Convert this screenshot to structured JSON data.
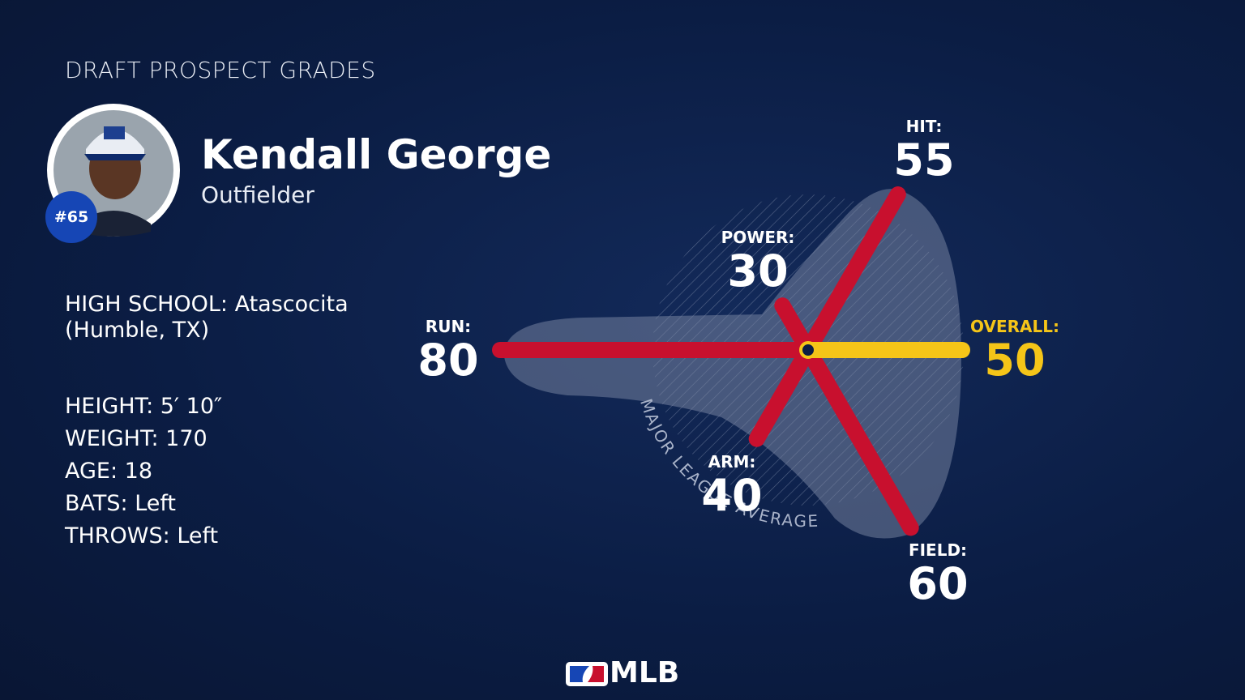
{
  "header": {
    "title": "DRAFT PROSPECT GRADES"
  },
  "player": {
    "name": "Kendall George",
    "position": "Outfielder",
    "rank": "#65"
  },
  "details": {
    "school": "HIGH SCHOOL: Atascocita (Humble, TX)",
    "lines": [
      "HEIGHT: 5′ 10″",
      "WEIGHT: 170",
      "AGE: 18",
      "BATS: Left",
      "THROWS: Left"
    ]
  },
  "chart_data": {
    "type": "radial",
    "categories": [
      "OVERALL:",
      "HIT:",
      "POWER:",
      "RUN:",
      "ARM:",
      "FIELD:"
    ],
    "values": [
      50,
      55,
      30,
      80,
      40,
      60
    ],
    "colors": [
      "#f5c518",
      "#c8102e",
      "#c8102e",
      "#c8102e",
      "#c8102e",
      "#c8102e"
    ],
    "rlim": [
      20,
      80
    ],
    "annotation": "MAJOR LEAGUE AVERAGE"
  },
  "footer": {
    "brand": "MLB"
  }
}
